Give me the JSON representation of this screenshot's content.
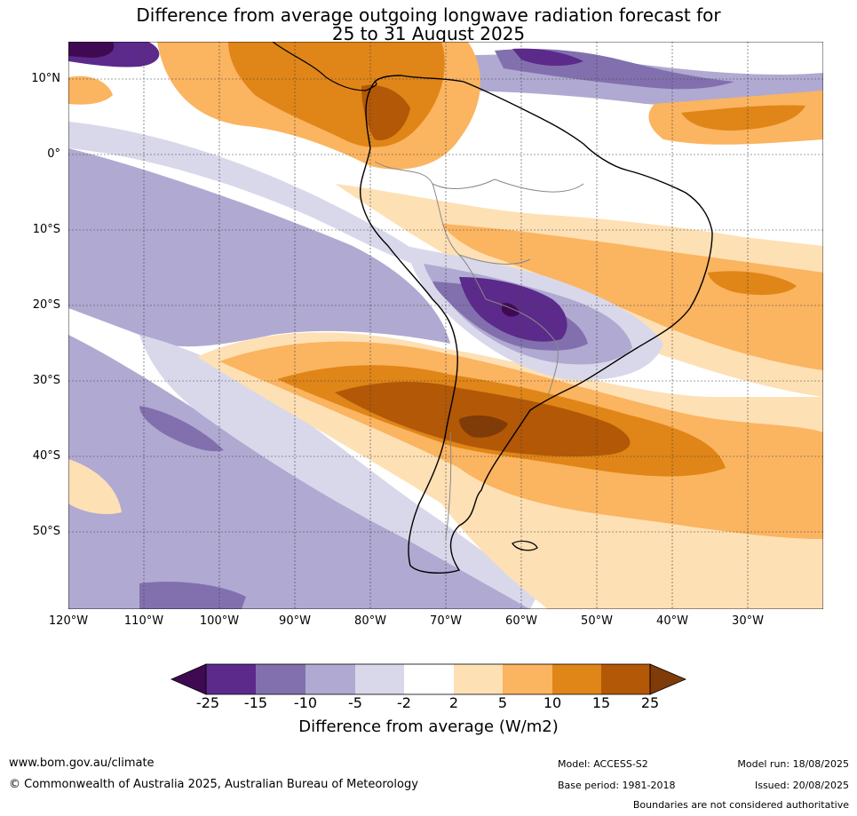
{
  "title": {
    "line1": "Difference from average outgoing longwave radiation forecast for",
    "line2": "25 to 31 August 2025"
  },
  "map": {
    "lat_labels": [
      "10°N",
      "0°",
      "10°S",
      "20°S",
      "30°S",
      "40°S",
      "50°S"
    ],
    "lon_labels": [
      "120°W",
      "110°W",
      "100°W",
      "90°W",
      "80°W",
      "70°W",
      "60°W",
      "50°W",
      "40°W",
      "30°W"
    ],
    "colors": {
      "lt_-25": "#3f0a52",
      "-25_-15": "#5b2a8a",
      "-15_-10": "#8270ae",
      "-10_-5": "#b0a9d1",
      "-5_-2": "#d9d8eb",
      "-2_2": "#ffffff",
      "2_5": "#fee0b5",
      "5_10": "#fbb460",
      "10_15": "#e08517",
      "15_25": "#b35806",
      "gt_25": "#7f3b08"
    }
  },
  "colorbar": {
    "ticks": [
      "-25",
      "-15",
      "-10",
      "-5",
      "-2",
      "2",
      "5",
      "10",
      "15",
      "25"
    ],
    "label": "Difference from average (W/m2)"
  },
  "footer": {
    "website": "www.bom.gov.au/climate",
    "copyright": "© Commonwealth of Australia 2025, Australian Bureau of Meteorology",
    "model": "Model: ACCESS-S2",
    "base_period": "Base period: 1981-2018",
    "model_run": "Model run: 18/08/2025",
    "issued": "Issued: 20/08/2025",
    "disclaimer": "Boundaries are not considered authoritative"
  }
}
